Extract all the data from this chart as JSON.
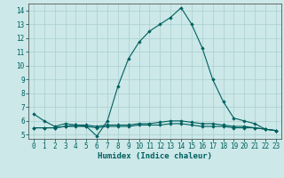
{
  "xlabel": "Humidex (Indice chaleur)",
  "bg_color": "#cce8e8",
  "grid_color": "#aacfcf",
  "line_color": "#005f5f",
  "spine_color": "#555555",
  "xlim": [
    -0.5,
    23.5
  ],
  "ylim": [
    4.7,
    14.5
  ],
  "xticks": [
    0,
    1,
    2,
    3,
    4,
    5,
    6,
    7,
    8,
    9,
    10,
    11,
    12,
    13,
    14,
    15,
    16,
    17,
    18,
    19,
    20,
    21,
    22,
    23
  ],
  "yticks": [
    5,
    6,
    7,
    8,
    9,
    10,
    11,
    12,
    13,
    14
  ],
  "series1_x": [
    0,
    1,
    2,
    3,
    4,
    5,
    6,
    7,
    8,
    9,
    10,
    11,
    12,
    13,
    14,
    15,
    16,
    17,
    18,
    19,
    20,
    21,
    22,
    23
  ],
  "series1_y": [
    6.5,
    6.0,
    5.6,
    5.8,
    5.7,
    5.6,
    4.9,
    6.0,
    8.5,
    10.5,
    11.7,
    12.5,
    13.0,
    13.5,
    14.2,
    13.0,
    11.3,
    9.0,
    7.4,
    6.2,
    6.0,
    5.8,
    5.4,
    5.3
  ],
  "series2_x": [
    0,
    1,
    2,
    3,
    4,
    5,
    6,
    7,
    8,
    9,
    10,
    11,
    12,
    13,
    14,
    15,
    16,
    17,
    18,
    19,
    20,
    21,
    22,
    23
  ],
  "series2_y": [
    5.5,
    5.5,
    5.5,
    5.6,
    5.6,
    5.6,
    5.5,
    5.6,
    5.6,
    5.6,
    5.7,
    5.7,
    5.7,
    5.8,
    5.8,
    5.7,
    5.6,
    5.6,
    5.6,
    5.5,
    5.5,
    5.5,
    5.4,
    5.3
  ],
  "series3_x": [
    0,
    1,
    2,
    3,
    4,
    5,
    6,
    7,
    8,
    9,
    10,
    11,
    12,
    13,
    14,
    15,
    16,
    17,
    18,
    19,
    20,
    21,
    22,
    23
  ],
  "series3_y": [
    5.5,
    5.5,
    5.5,
    5.6,
    5.7,
    5.7,
    5.6,
    5.7,
    5.7,
    5.7,
    5.8,
    5.8,
    5.9,
    6.0,
    6.0,
    5.9,
    5.8,
    5.8,
    5.7,
    5.6,
    5.6,
    5.5,
    5.4,
    5.3
  ],
  "tick_fontsize": 5.5,
  "xlabel_fontsize": 6.5
}
